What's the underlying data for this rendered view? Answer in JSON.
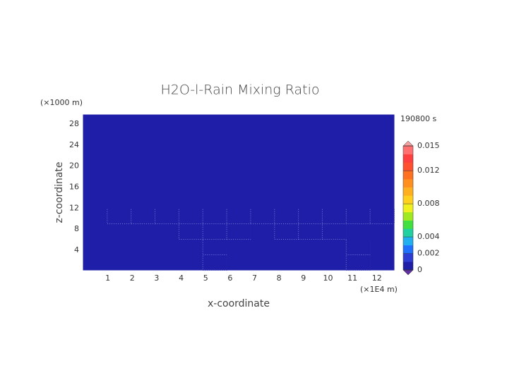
{
  "chart_data": {
    "type": "heatmap",
    "title": "H2O-l-Rain Mixing Ratio",
    "time_label": "190800 s",
    "x_label": "x-coordinate",
    "y_label": "z-coordinate",
    "x_unit": "(×1E4 m)",
    "y_unit": "(×1000 m)",
    "xlim": [
      0,
      12.7
    ],
    "ylim": [
      0.25,
      29.75
    ],
    "xticks": [
      1,
      2,
      3,
      4,
      5,
      6,
      7,
      8,
      9,
      10,
      11,
      12
    ],
    "yticks": [
      4,
      8,
      12,
      16,
      20,
      24,
      28
    ],
    "z": [
      [
        0,
        0,
        0,
        0,
        0,
        0.0005,
        0,
        0,
        0,
        0,
        0,
        0.0005,
        0
      ],
      [
        0,
        0,
        0,
        0,
        0,
        0.0005,
        0,
        0,
        0,
        0,
        0,
        0.0005,
        0
      ],
      [
        0,
        0,
        0,
        0,
        0.0005,
        0.0005,
        0.0005,
        0,
        0.0005,
        0.0005,
        0.0005,
        0,
        0
      ],
      [
        0,
        0.0005,
        0.0005,
        0.0005,
        0.0005,
        0.0005,
        0.0005,
        0.0005,
        0.0005,
        0.0005,
        0.0005,
        0.0005,
        0.0005
      ],
      [
        0,
        0,
        0,
        0,
        0,
        0,
        0,
        0,
        0,
        0,
        0,
        0,
        0
      ],
      [
        0,
        0,
        0,
        0,
        0,
        0,
        0,
        0,
        0,
        0,
        0,
        0,
        0
      ],
      [
        0,
        0,
        0,
        0,
        0,
        0,
        0,
        0,
        0,
        0,
        0,
        0,
        0
      ],
      [
        0,
        0,
        0,
        0,
        0,
        0,
        0,
        0,
        0,
        0,
        0,
        0,
        0
      ],
      [
        0,
        0,
        0,
        0,
        0,
        0,
        0,
        0,
        0,
        0,
        0,
        0,
        0
      ],
      [
        0,
        0,
        0,
        0,
        0,
        0,
        0,
        0,
        0,
        0,
        0,
        0,
        0
      ]
    ],
    "colorbar": {
      "lim": [
        0,
        0.015
      ],
      "ticks": [
        0,
        0.002,
        0.004,
        0.008,
        0.012,
        0.015
      ],
      "colors": [
        "#1e1ea8",
        "#2d3cd2",
        "#2070ff",
        "#20b0f0",
        "#20d0a0",
        "#40e040",
        "#a0e820",
        "#f0f020",
        "#ffd020",
        "#ffb020",
        "#ff9020",
        "#ff7020",
        "#ff5030",
        "#ff4040",
        "#ff7070"
      ],
      "under_color": "#6030a0",
      "over_color": "#f4a0a0"
    }
  }
}
